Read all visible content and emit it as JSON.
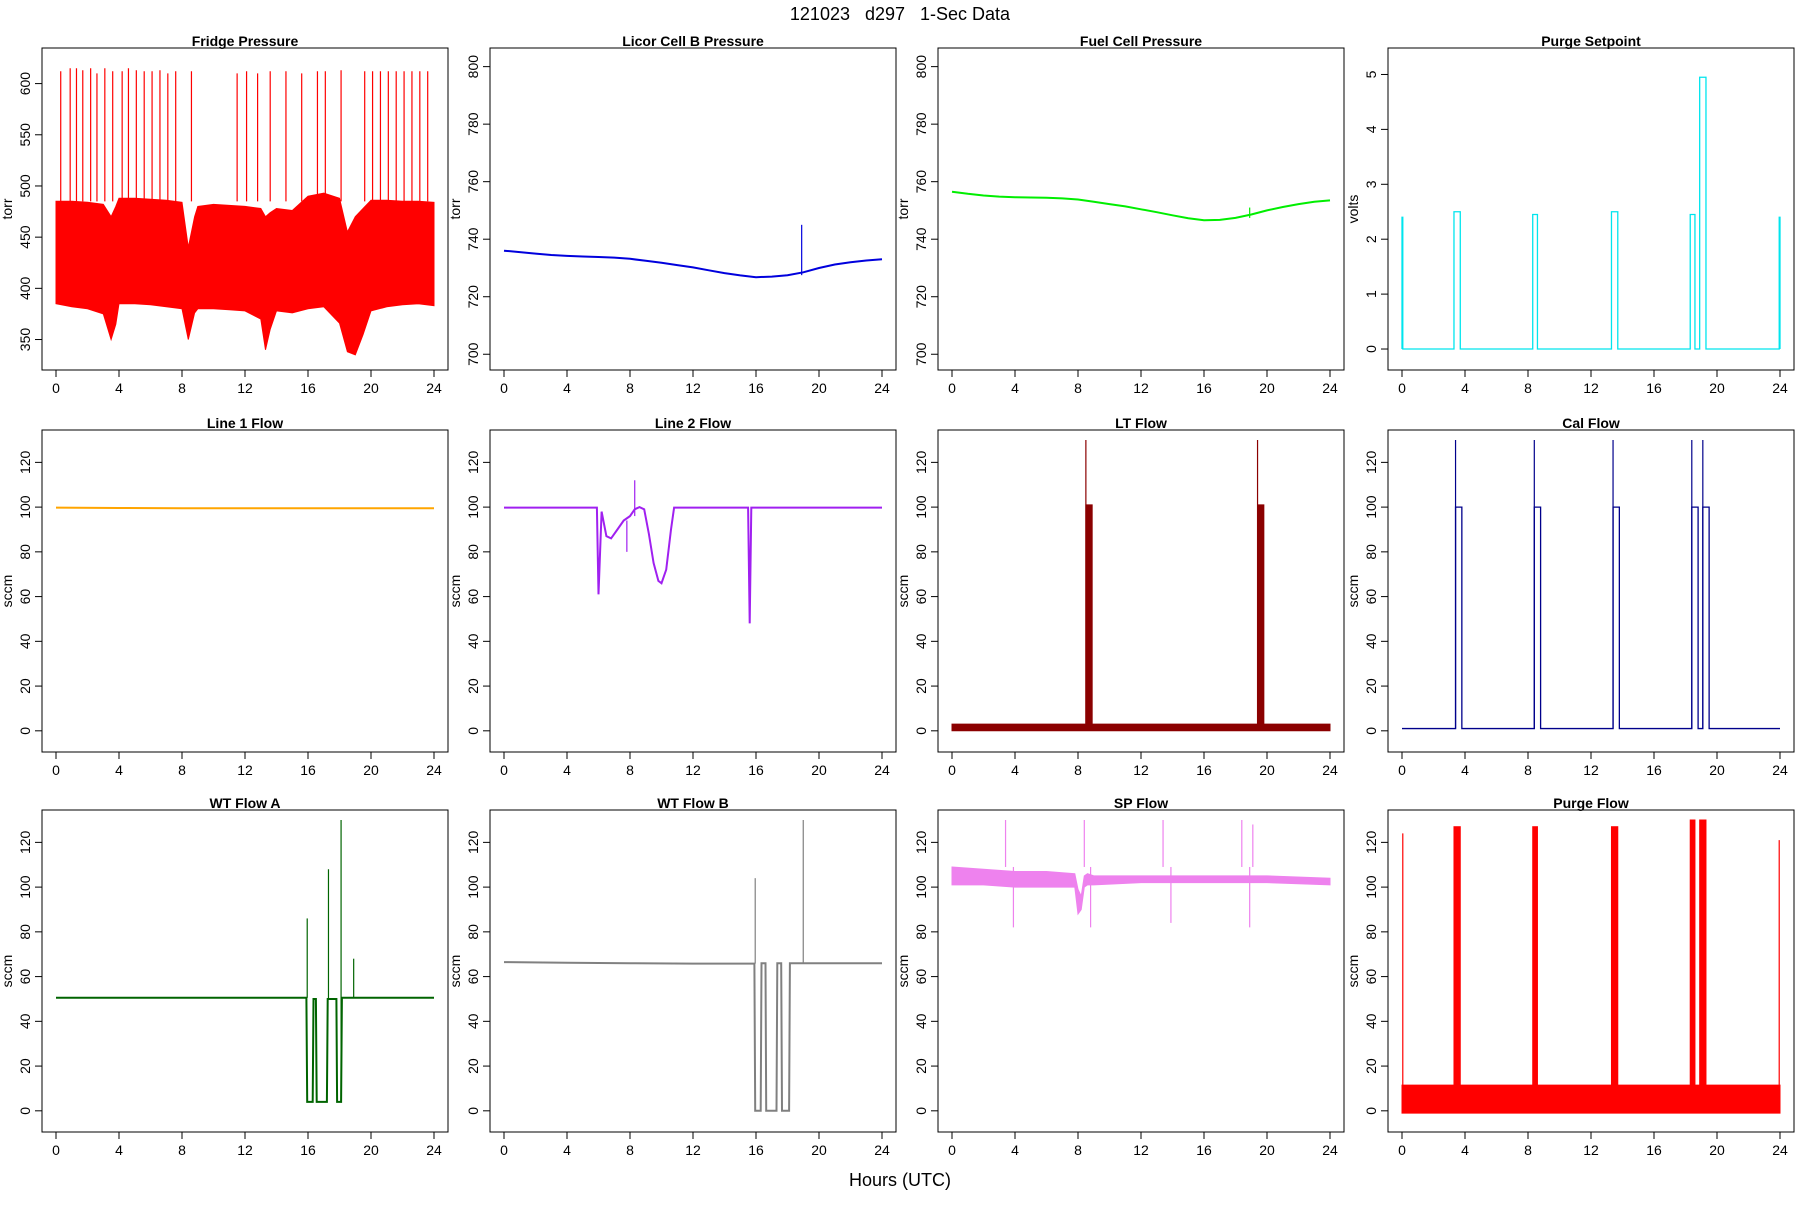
{
  "figure": {
    "title": "121023   d297   1-Sec Data",
    "xlabel": "Hours (UTC)"
  },
  "chart_data": [
    {
      "type": "line",
      "title": "Fridge Pressure",
      "ylabel": "torr",
      "color": "#ff0000",
      "xlim": [
        0,
        24
      ],
      "ylim": [
        330,
        625
      ],
      "xticks": [
        0,
        4,
        8,
        12,
        16,
        20,
        24
      ],
      "yticks": [
        350,
        400,
        450,
        500,
        550,
        600
      ],
      "band": {
        "x": [
          0,
          1,
          2,
          3,
          3.5,
          3.8,
          4,
          5,
          6,
          7,
          8,
          8.4,
          8.8,
          9,
          10,
          11,
          12,
          13,
          13.3,
          13.6,
          14,
          15,
          16,
          17,
          18,
          18.5,
          19,
          19.5,
          20,
          21,
          22,
          23,
          24
        ],
        "hi": [
          485,
          485,
          484,
          482,
          470,
          480,
          488,
          488,
          487,
          486,
          484,
          440,
          470,
          480,
          482,
          481,
          480,
          478,
          470,
          474,
          478,
          476,
          490,
          493,
          488,
          455,
          470,
          478,
          486,
          486,
          485,
          485,
          484
        ],
        "lo": [
          385,
          382,
          380,
          375,
          350,
          365,
          385,
          385,
          384,
          382,
          380,
          350,
          376,
          380,
          380,
          379,
          378,
          370,
          340,
          360,
          378,
          376,
          380,
          382,
          366,
          338,
          335,
          355,
          378,
          382,
          384,
          385,
          383
        ]
      },
      "spikes": {
        "x": [
          0.3,
          0.9,
          1.3,
          1.7,
          2.2,
          2.6,
          3.1,
          3.6,
          4.2,
          4.6,
          5.1,
          5.6,
          6.1,
          6.6,
          7.1,
          7.6,
          8.6,
          11.5,
          12.1,
          12.8,
          13.6,
          14.6,
          15.6,
          16.6,
          17.1,
          18.1,
          19.6,
          20.1,
          20.6,
          21.1,
          21.6,
          22.1,
          22.6,
          23.1,
          23.6
        ],
        "y": [
          612,
          615,
          615,
          613,
          615,
          610,
          615,
          612,
          612,
          615,
          613,
          612,
          612,
          613,
          610,
          612,
          612,
          610,
          612,
          610,
          612,
          612,
          610,
          612,
          612,
          613,
          612,
          612,
          612,
          612,
          612,
          612,
          612,
          612,
          612
        ]
      }
    },
    {
      "type": "line",
      "title": "Licor Cell B Pressure",
      "ylabel": "torr",
      "color": "#0000dd",
      "xlim": [
        0,
        24
      ],
      "ylim": [
        698,
        803
      ],
      "xticks": [
        0,
        4,
        8,
        12,
        16,
        20,
        24
      ],
      "yticks": [
        700,
        720,
        740,
        760,
        780,
        800
      ],
      "x": [
        0,
        1,
        2,
        3,
        4,
        5,
        6,
        7,
        8,
        9,
        10,
        11,
        12,
        13,
        14,
        15,
        16,
        17,
        18,
        19,
        20,
        21,
        22,
        23,
        24
      ],
      "y": [
        736,
        735.5,
        735,
        734.5,
        734.2,
        734,
        733.8,
        733.6,
        733.2,
        732.5,
        731.8,
        731,
        730.2,
        729.2,
        728.2,
        727.4,
        726.8,
        727,
        727.5,
        728.5,
        730,
        731.2,
        732,
        732.6,
        733
      ],
      "spikes": {
        "x": [
          18.9
        ],
        "y": [
          745
        ]
      }
    },
    {
      "type": "line",
      "title": "Fuel Cell Pressure",
      "ylabel": "torr",
      "color": "#00ee00",
      "xlim": [
        0,
        24
      ],
      "ylim": [
        698,
        803
      ],
      "xticks": [
        0,
        4,
        8,
        12,
        16,
        20,
        24
      ],
      "yticks": [
        700,
        720,
        740,
        760,
        780,
        800
      ],
      "x": [
        0,
        1,
        2,
        3,
        4,
        5,
        6,
        7,
        8,
        9,
        10,
        11,
        12,
        13,
        14,
        15,
        16,
        17,
        18,
        19,
        20,
        21,
        22,
        23,
        24
      ],
      "y": [
        756.5,
        755.8,
        755.2,
        754.8,
        754.6,
        754.5,
        754.4,
        754.2,
        753.8,
        753,
        752.2,
        751.4,
        750.4,
        749.4,
        748.3,
        747.3,
        746.6,
        746.7,
        747.4,
        748.6,
        750,
        751.2,
        752.2,
        753,
        753.5
      ],
      "spikes": {
        "x": [
          18.9
        ],
        "y": [
          751
        ]
      }
    },
    {
      "type": "line",
      "title": "Purge Setpoint",
      "ylabel": "volts",
      "color": "#00e5ee",
      "xlim": [
        0,
        24
      ],
      "ylim": [
        -0.2,
        5.3
      ],
      "xticks": [
        0,
        4,
        8,
        12,
        16,
        20,
        24
      ],
      "yticks": [
        0,
        1,
        2,
        3,
        4,
        5
      ],
      "pulses": [
        {
          "start": 0.0,
          "end": 0.05,
          "level": 2.4
        },
        {
          "start": 3.3,
          "end": 3.7,
          "level": 2.5
        },
        {
          "start": 8.3,
          "end": 8.6,
          "level": 2.45
        },
        {
          "start": 13.3,
          "end": 13.7,
          "level": 2.5
        },
        {
          "start": 18.3,
          "end": 18.6,
          "level": 2.45
        },
        {
          "start": 18.9,
          "end": 19.3,
          "level": 4.95
        },
        {
          "start": 23.95,
          "end": 24.0,
          "level": 2.4
        }
      ],
      "baseline": 0
    },
    {
      "type": "line",
      "title": "Line 1 Flow",
      "ylabel": "sccm",
      "color": "#ffa500",
      "xlim": [
        0,
        24
      ],
      "ylim": [
        -5,
        130
      ],
      "xticks": [
        0,
        4,
        8,
        12,
        16,
        20,
        24
      ],
      "yticks": [
        0,
        20,
        40,
        60,
        80,
        100,
        120
      ],
      "x": [
        0,
        4,
        8,
        12,
        16,
        20,
        24
      ],
      "y": [
        99.8,
        99.6,
        99.5,
        99.5,
        99.5,
        99.5,
        99.5
      ]
    },
    {
      "type": "line",
      "title": "Line 2 Flow",
      "ylabel": "sccm",
      "color": "#a020f0",
      "xlim": [
        0,
        24
      ],
      "ylim": [
        -5,
        130
      ],
      "xticks": [
        0,
        4,
        8,
        12,
        16,
        20,
        24
      ],
      "yticks": [
        0,
        20,
        40,
        60,
        80,
        100,
        120
      ],
      "x": [
        0,
        5.9,
        6,
        6.2,
        6.5,
        6.8,
        7.2,
        7.6,
        8,
        8.3,
        8.6,
        8.9,
        9.2,
        9.5,
        9.8,
        10,
        10.3,
        10.6,
        10.8,
        11,
        15.5,
        15.6,
        15.7,
        15.8,
        24
      ],
      "y": [
        99.8,
        99.8,
        61,
        98,
        87,
        86,
        90,
        94,
        96,
        99,
        100,
        99,
        88,
        75,
        67,
        66,
        72,
        90,
        99.8,
        99.8,
        99.8,
        48,
        99.8,
        99.8,
        99.8
      ],
      "spikes": {
        "x": [
          7.8,
          8.3
        ],
        "y": [
          80,
          112
        ]
      }
    },
    {
      "type": "line",
      "title": "LT Flow",
      "ylabel": "sccm",
      "color": "#8b0000",
      "xlim": [
        0,
        24
      ],
      "ylim": [
        -5,
        130
      ],
      "xticks": [
        0,
        4,
        8,
        12,
        16,
        20,
        24
      ],
      "yticks": [
        0,
        20,
        40,
        60,
        80,
        100,
        120
      ],
      "band": {
        "x": [
          0,
          24
        ],
        "hi": [
          3,
          3
        ],
        "lo": [
          0,
          0
        ]
      },
      "pulses": [
        {
          "start": 8.5,
          "end": 8.9,
          "level": 101
        },
        {
          "start": 19.4,
          "end": 19.8,
          "level": 101
        }
      ],
      "spikes": {
        "x": [
          8.5,
          19.4
        ],
        "y": [
          130,
          130
        ]
      }
    },
    {
      "type": "line",
      "title": "Cal Flow",
      "ylabel": "sccm",
      "color": "#00008b",
      "xlim": [
        0,
        24
      ],
      "ylim": [
        -5,
        130
      ],
      "xticks": [
        0,
        4,
        8,
        12,
        16,
        20,
        24
      ],
      "yticks": [
        0,
        20,
        40,
        60,
        80,
        100,
        120
      ],
      "baseline": 1,
      "pulses": [
        {
          "start": 3.4,
          "end": 3.8,
          "level": 100
        },
        {
          "start": 8.4,
          "end": 8.8,
          "level": 100
        },
        {
          "start": 13.4,
          "end": 13.8,
          "level": 100
        },
        {
          "start": 18.4,
          "end": 18.8,
          "level": 100
        },
        {
          "start": 19.1,
          "end": 19.5,
          "level": 100
        }
      ],
      "spikes": {
        "x": [
          3.4,
          8.4,
          13.4,
          18.4,
          19.1
        ],
        "y": [
          130,
          130,
          130,
          130,
          130
        ]
      }
    },
    {
      "type": "line",
      "title": "WT Flow A",
      "ylabel": "sccm",
      "color": "#006400",
      "xlim": [
        0,
        24
      ],
      "ylim": [
        -5,
        130
      ],
      "xticks": [
        0,
        4,
        8,
        12,
        16,
        20,
        24
      ],
      "yticks": [
        0,
        20,
        40,
        60,
        80,
        100,
        120
      ],
      "x": [
        0,
        15.9,
        15.95,
        16.3,
        16.35,
        16.5,
        16.55,
        17.2,
        17.25,
        17.8,
        17.85,
        18.1,
        18.15,
        24
      ],
      "y": [
        50.5,
        50.5,
        4,
        4,
        50,
        50,
        4,
        4,
        50,
        50,
        4,
        4,
        50.5,
        50.5
      ],
      "spikes": {
        "x": [
          15.95,
          17.3,
          18.1,
          18.9
        ],
        "y": [
          86,
          108,
          130,
          68
        ]
      }
    },
    {
      "type": "line",
      "title": "WT Flow B",
      "ylabel": "sccm",
      "color": "#808080",
      "xlim": [
        0,
        24
      ],
      "ylim": [
        -5,
        130
      ],
      "xticks": [
        0,
        4,
        8,
        12,
        16,
        20,
        24
      ],
      "yticks": [
        0,
        20,
        40,
        60,
        80,
        100,
        120
      ],
      "x": [
        0,
        4,
        8,
        12,
        15.9,
        15.95,
        16.3,
        16.35,
        16.6,
        16.65,
        17.3,
        17.35,
        17.6,
        17.65,
        18.1,
        18.15,
        20,
        24
      ],
      "y": [
        66.5,
        66.2,
        66,
        65.8,
        65.8,
        0,
        0,
        66,
        66,
        0,
        0,
        66,
        66,
        0,
        0,
        66,
        66,
        66
      ],
      "spikes": {
        "x": [
          15.95,
          19.0
        ],
        "y": [
          104,
          130
        ]
      }
    },
    {
      "type": "line",
      "title": "SP Flow",
      "ylabel": "sccm",
      "color": "#ee82ee",
      "xlim": [
        0,
        24
      ],
      "ylim": [
        -5,
        130
      ],
      "xticks": [
        0,
        4,
        8,
        12,
        16,
        20,
        24
      ],
      "yticks": [
        0,
        20,
        40,
        60,
        80,
        100,
        120
      ],
      "band": {
        "x": [
          0,
          2,
          4,
          6,
          7.8,
          8,
          8.2,
          8.4,
          8.6,
          9,
          12,
          16,
          20,
          24
        ],
        "hi": [
          109,
          108,
          107,
          107,
          106,
          99,
          96,
          105,
          106,
          105,
          105,
          105,
          105,
          104
        ],
        "lo": [
          101,
          101,
          100,
          100,
          100,
          88,
          90,
          100,
          101,
          101,
          102,
          102,
          102,
          101
        ]
      },
      "spikes": {
        "x": [
          3.4,
          3.9,
          8.4,
          8.8,
          13.4,
          13.9,
          18.4,
          18.9,
          19.1
        ],
        "y": [
          130,
          82,
          130,
          82,
          130,
          84,
          130,
          82,
          128
        ]
      }
    },
    {
      "type": "line",
      "title": "Purge Flow",
      "ylabel": "sccm",
      "color": "#ff0000",
      "xlim": [
        0,
        24
      ],
      "ylim": [
        -5,
        130
      ],
      "xticks": [
        0,
        4,
        8,
        12,
        16,
        20,
        24
      ],
      "yticks": [
        0,
        20,
        40,
        60,
        80,
        100,
        120
      ],
      "band": {
        "x": [
          0,
          24
        ],
        "hi": [
          11.5,
          11.5
        ],
        "lo": [
          -1,
          -1
        ]
      },
      "pulses": [
        {
          "start": 3.3,
          "end": 3.7,
          "level": 127
        },
        {
          "start": 8.3,
          "end": 8.6,
          "level": 127
        },
        {
          "start": 13.3,
          "end": 13.7,
          "level": 127
        },
        {
          "start": 18.3,
          "end": 18.6,
          "level": 130
        },
        {
          "start": 18.9,
          "end": 19.3,
          "level": 130
        }
      ],
      "spikes": {
        "x": [
          0.05,
          23.95
        ],
        "y": [
          124,
          121
        ]
      }
    }
  ]
}
